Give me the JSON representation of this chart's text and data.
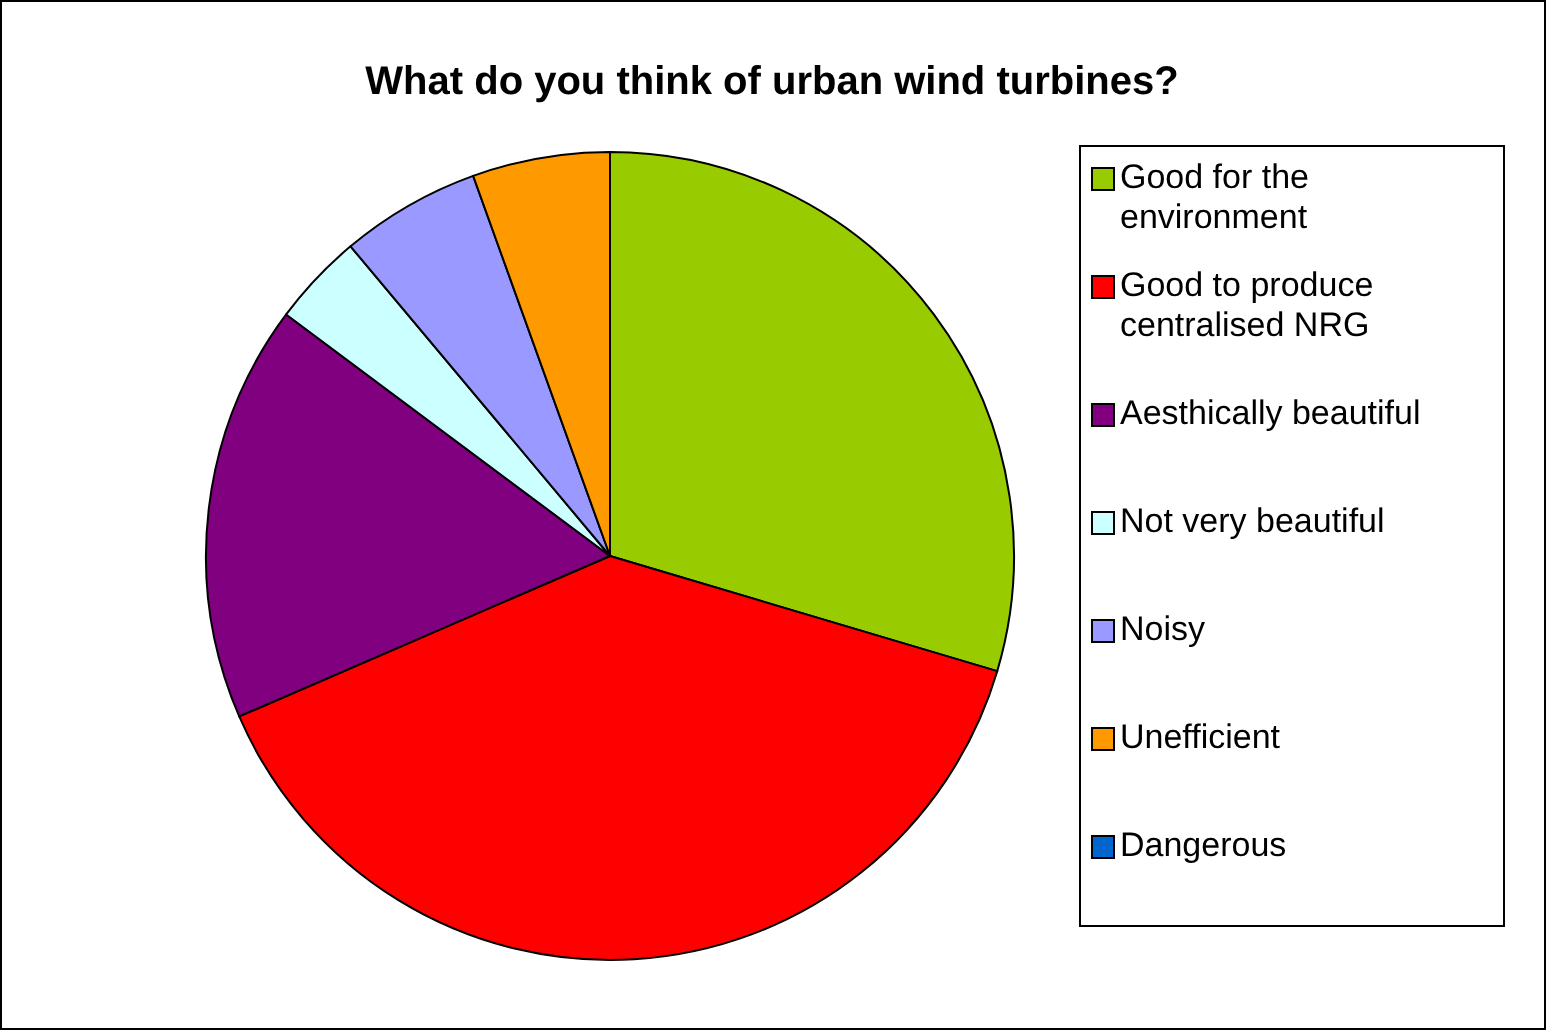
{
  "chart_data": {
    "type": "pie",
    "title": "What do you think of urban wind turbines?",
    "categories": [
      "Good for the environment",
      "Good to produce centralised NRG",
      "Aesthically beautiful",
      "Not very beautiful",
      "Noisy",
      "Unefficient",
      "Dangerous"
    ],
    "values": [
      29.6,
      38.9,
      16.7,
      3.7,
      5.6,
      5.5,
      0
    ],
    "colors": [
      "#99cc00",
      "#ff0000",
      "#800080",
      "#ccffff",
      "#9999ff",
      "#ff9900",
      "#0066cc"
    ],
    "legend": "right"
  }
}
